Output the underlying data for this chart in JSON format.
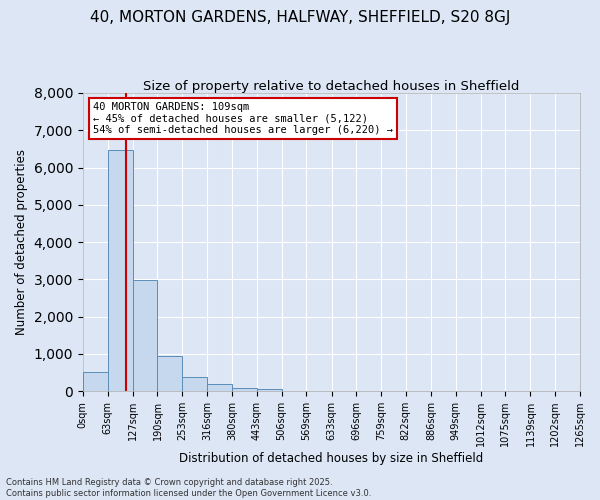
{
  "title_line1": "40, MORTON GARDENS, HALFWAY, SHEFFIELD, S20 8GJ",
  "title_line2": "Size of property relative to detached houses in Sheffield",
  "xlabel": "Distribution of detached houses by size in Sheffield",
  "ylabel": "Number of detached properties",
  "bar_color": "#c5d8ed",
  "bar_edge_color": "#5b8db8",
  "bg_color": "#dce6f5",
  "bin_edges": [
    0,
    63,
    127,
    190,
    253,
    316,
    380,
    443,
    506,
    569,
    633,
    696,
    759,
    822,
    886,
    949,
    1012,
    1075,
    1139,
    1202,
    1265
  ],
  "bar_heights": [
    520,
    6480,
    2980,
    950,
    380,
    185,
    90,
    50,
    0,
    0,
    0,
    0,
    0,
    0,
    0,
    0,
    0,
    0,
    0,
    0
  ],
  "property_value": 109,
  "vline_color": "#cc0000",
  "annotation_line1": "40 MORTON GARDENS: 109sqm",
  "annotation_line2": "← 45% of detached houses are smaller (5,122)",
  "annotation_line3": "54% of semi-detached houses are larger (6,220) →",
  "annotation_box_color": "#ffffff",
  "annotation_box_edge_color": "#cc0000",
  "ylim": [
    0,
    8000
  ],
  "yticks": [
    0,
    1000,
    2000,
    3000,
    4000,
    5000,
    6000,
    7000,
    8000
  ],
  "footer_line1": "Contains HM Land Registry data © Crown copyright and database right 2025.",
  "footer_line2": "Contains public sector information licensed under the Open Government Licence v3.0.",
  "title_fontsize": 11,
  "subtitle_fontsize": 9.5,
  "tick_label_fontsize": 7,
  "annotation_fontsize": 7.5,
  "ylabel_fontsize": 8.5,
  "xlabel_fontsize": 8.5,
  "footer_fontsize": 6
}
